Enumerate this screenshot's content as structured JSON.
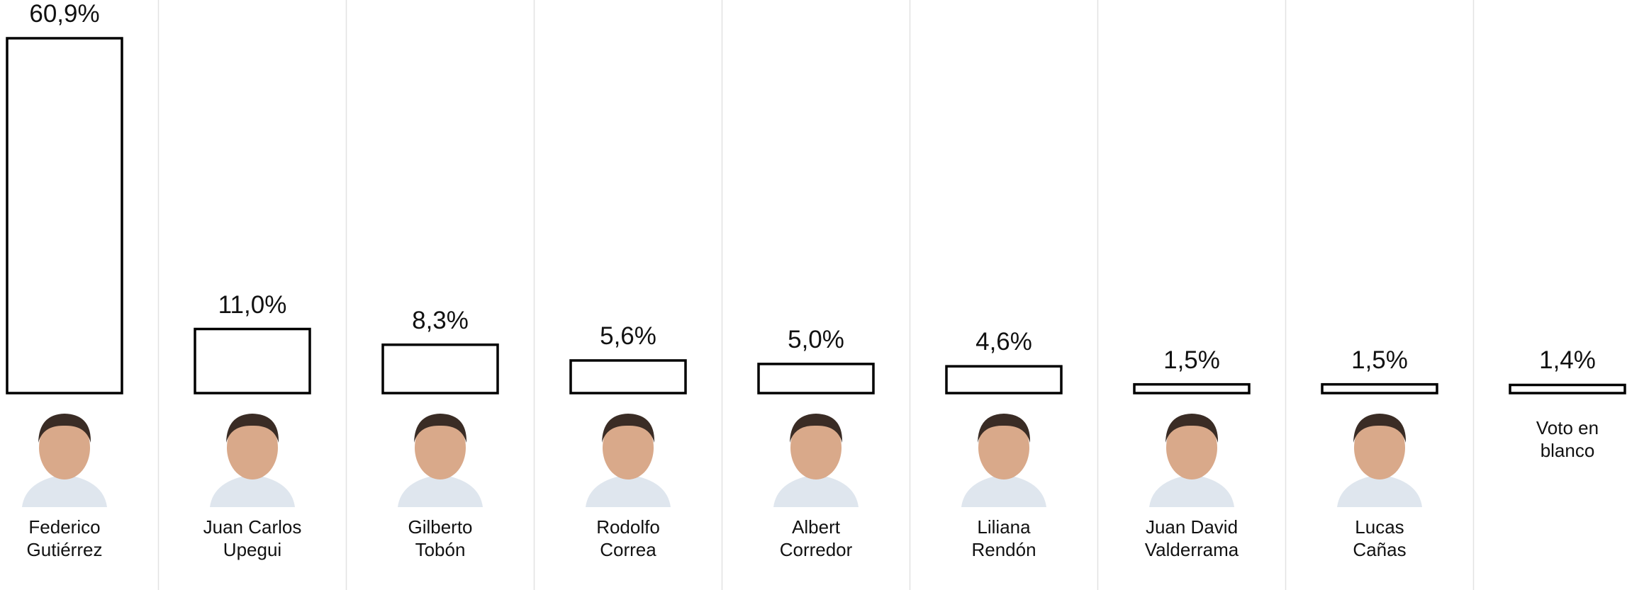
{
  "chart_data": {
    "type": "bar",
    "categories": [
      "Federico Gutiérrez",
      "Juan Carlos Upegui",
      "Gilberto Tobón",
      "Rodolfo Correa",
      "Albert Corredor",
      "Liliana Rendón",
      "Juan David Valderrama",
      "Lucas Cañas",
      "Voto en blanco"
    ],
    "values": [
      60.9,
      11.0,
      8.3,
      5.6,
      5.0,
      4.6,
      1.5,
      1.5,
      1.4
    ],
    "value_labels": [
      "60,9%",
      "11,0%",
      "8,3%",
      "5,6%",
      "5,0%",
      "4,6%",
      "1,5%",
      "1,5%",
      "1,4%"
    ],
    "color": "#ffffff"
  }
}
